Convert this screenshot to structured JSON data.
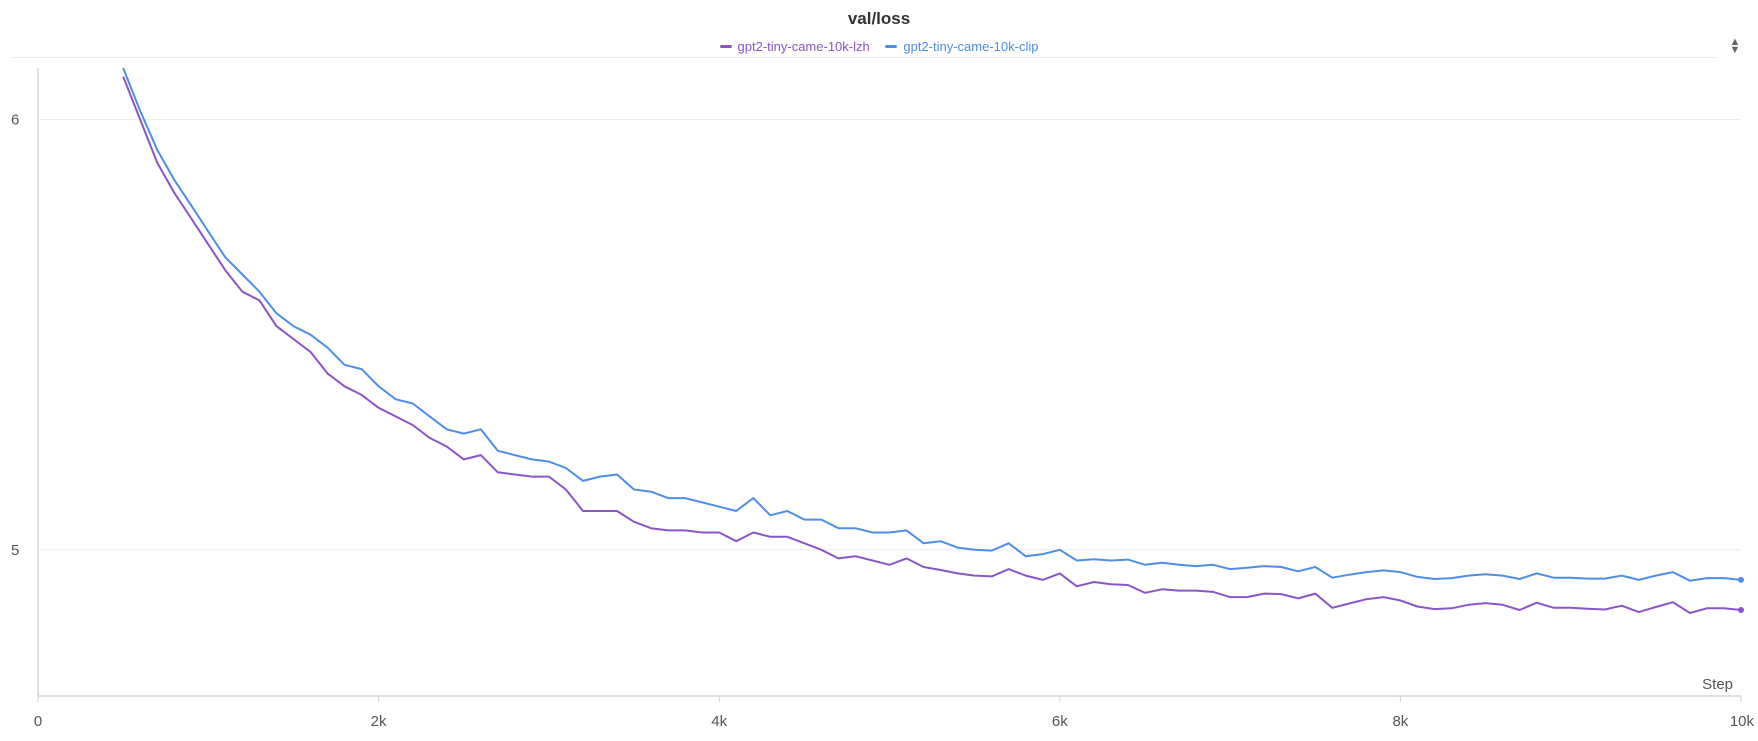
{
  "chart_data": {
    "type": "line",
    "title": "val/loss",
    "xlabel": "Step",
    "ylabel": "",
    "xlim": [
      0,
      10000
    ],
    "ylim": [
      4.66,
      6.12
    ],
    "x_ticks": [
      0,
      2000,
      4000,
      6000,
      8000,
      10000
    ],
    "x_tick_labels": [
      "0",
      "2k",
      "4k",
      "6k",
      "8k",
      "10k"
    ],
    "y_ticks": [
      5,
      6
    ],
    "y_tick_labels": [
      "5",
      "6"
    ],
    "grid": true,
    "legend_position": "top-center",
    "series": [
      {
        "name": "gpt2-tiny-came-10k-lzh",
        "color": "#8a55c9",
        "x": [
          500,
          600,
          700,
          800,
          900,
          1000,
          1100,
          1200,
          1300,
          1400,
          1500,
          1600,
          1700,
          1800,
          1900,
          2000,
          2100,
          2200,
          2300,
          2400,
          2500,
          2600,
          2700,
          2800,
          2900,
          3000,
          3100,
          3200,
          3300,
          3400,
          3500,
          3600,
          3700,
          3800,
          3900,
          4000,
          4100,
          4200,
          4300,
          4400,
          4500,
          4600,
          4700,
          4800,
          4900,
          5000,
          5100,
          5200,
          5300,
          5400,
          5500,
          5600,
          5700,
          5800,
          5900,
          6000,
          6100,
          6200,
          6300,
          6400,
          6500,
          6600,
          6700,
          6800,
          6900,
          7000,
          7100,
          7200,
          7300,
          7400,
          7500,
          7600,
          7700,
          7800,
          7900,
          8000,
          8100,
          8200,
          8300,
          8400,
          8500,
          8600,
          8700,
          8800,
          8900,
          9000,
          9100,
          9200,
          9300,
          9400,
          9500,
          9600,
          9700,
          9800,
          9900,
          10000
        ],
        "values": [
          6.1,
          6.0,
          5.9,
          5.83,
          5.77,
          5.71,
          5.65,
          5.6,
          5.58,
          5.52,
          5.49,
          5.46,
          5.41,
          5.38,
          5.36,
          5.33,
          5.31,
          5.29,
          5.26,
          5.24,
          5.21,
          5.22,
          5.18,
          5.175,
          5.17,
          5.17,
          5.14,
          5.09,
          5.09,
          5.09,
          5.065,
          5.05,
          5.045,
          5.045,
          5.04,
          5.04,
          5.02,
          5.04,
          5.03,
          5.03,
          5.015,
          5.0,
          4.98,
          4.985,
          4.975,
          4.965,
          4.98,
          4.96,
          4.953,
          4.945,
          4.94,
          4.938,
          4.955,
          4.94,
          4.93,
          4.945,
          4.915,
          4.925,
          4.92,
          4.918,
          4.9,
          4.908,
          4.905,
          4.905,
          4.902,
          4.89,
          4.89,
          4.898,
          4.897,
          4.887,
          4.898,
          4.865,
          4.875,
          4.885,
          4.89,
          4.882,
          4.868,
          4.862,
          4.864,
          4.872,
          4.876,
          4.872,
          4.86,
          4.877,
          4.865,
          4.865,
          4.863,
          4.861,
          4.87,
          4.855,
          4.867,
          4.878,
          4.853,
          4.864,
          4.864,
          4.86
        ]
      },
      {
        "name": "gpt2-tiny-came-10k-clip",
        "color": "#4f8ee8",
        "x": [
          500,
          600,
          700,
          800,
          900,
          1000,
          1100,
          1200,
          1300,
          1400,
          1500,
          1600,
          1700,
          1800,
          1900,
          2000,
          2100,
          2200,
          2300,
          2400,
          2500,
          2600,
          2700,
          2800,
          2900,
          3000,
          3100,
          3200,
          3300,
          3400,
          3500,
          3600,
          3700,
          3800,
          3900,
          4000,
          4100,
          4200,
          4300,
          4400,
          4500,
          4600,
          4700,
          4800,
          4900,
          5000,
          5100,
          5200,
          5300,
          5400,
          5500,
          5600,
          5700,
          5800,
          5900,
          6000,
          6100,
          6200,
          6300,
          6400,
          6500,
          6600,
          6700,
          6800,
          6900,
          7000,
          7100,
          7200,
          7300,
          7400,
          7500,
          7600,
          7700,
          7800,
          7900,
          8000,
          8100,
          8200,
          8300,
          8400,
          8500,
          8600,
          8700,
          8800,
          8900,
          9000,
          9100,
          9200,
          9300,
          9400,
          9500,
          9600,
          9700,
          9800,
          9900,
          10000
        ],
        "values": [
          6.12,
          6.02,
          5.93,
          5.86,
          5.8,
          5.74,
          5.68,
          5.64,
          5.6,
          5.55,
          5.52,
          5.5,
          5.47,
          5.43,
          5.42,
          5.38,
          5.35,
          5.34,
          5.31,
          5.28,
          5.27,
          5.28,
          5.23,
          5.22,
          5.21,
          5.205,
          5.19,
          5.16,
          5.17,
          5.175,
          5.14,
          5.135,
          5.12,
          5.12,
          5.11,
          5.1,
          5.09,
          5.12,
          5.08,
          5.09,
          5.07,
          5.07,
          5.05,
          5.05,
          5.04,
          5.04,
          5.045,
          5.015,
          5.02,
          5.005,
          5.0,
          4.998,
          5.015,
          4.985,
          4.99,
          5.0,
          4.975,
          4.978,
          4.975,
          4.977,
          4.965,
          4.97,
          4.965,
          4.962,
          4.965,
          4.955,
          4.958,
          4.962,
          4.96,
          4.95,
          4.96,
          4.935,
          4.942,
          4.948,
          4.952,
          4.948,
          4.937,
          4.932,
          4.934,
          4.94,
          4.943,
          4.94,
          4.932,
          4.945,
          4.935,
          4.935,
          4.933,
          4.933,
          4.94,
          4.93,
          4.94,
          4.948,
          4.928,
          4.934,
          4.934,
          4.93
        ]
      }
    ]
  },
  "menu_icon": "sort-arrows-icon"
}
